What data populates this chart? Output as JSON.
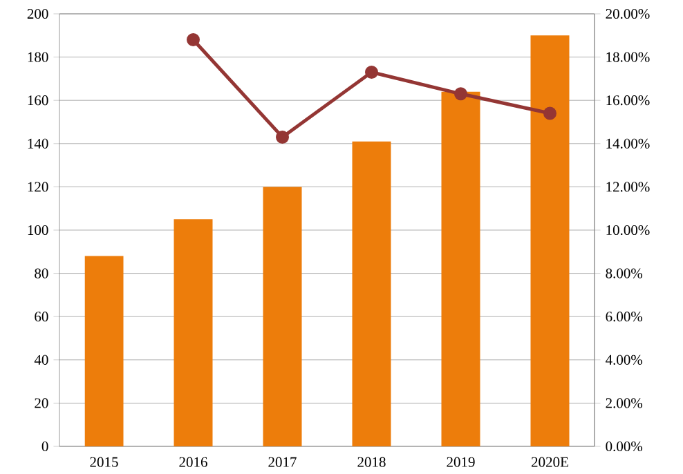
{
  "chart_data": {
    "type": "bar",
    "categories": [
      "2015",
      "2016",
      "2017",
      "2018",
      "2019",
      "2020E"
    ],
    "series": [
      {
        "color": "#ed7d0b",
        "values": [
          88,
          105,
          120,
          141,
          164,
          190
        ]
      },
      {
        "type": "line",
        "axis": "y2",
        "color": "#943634",
        "marker": "circle",
        "values": [
          null,
          18.8,
          14.3,
          17.3,
          16.3,
          15.4
        ]
      }
    ],
    "ylim": [
      0,
      200
    ],
    "yticks": [
      0,
      20,
      40,
      60,
      80,
      100,
      120,
      140,
      160,
      180,
      200
    ],
    "y2lim": [
      0,
      20
    ],
    "y2ticks": [
      {
        "value": 0,
        "label": "0.00%"
      },
      {
        "value": 2,
        "label": "2.00%"
      },
      {
        "value": 4,
        "label": "4.00%"
      },
      {
        "value": 6,
        "label": "6.00%"
      },
      {
        "value": 8,
        "label": "8.00%"
      },
      {
        "value": 10,
        "label": "10.00%"
      },
      {
        "value": 12,
        "label": "12.00%"
      },
      {
        "value": 14,
        "label": "14.00%"
      },
      {
        "value": 16,
        "label": "16.00%"
      },
      {
        "value": 18,
        "label": "18.00%"
      },
      {
        "value": 20,
        "label": "20.00%"
      }
    ],
    "grid": "y"
  }
}
